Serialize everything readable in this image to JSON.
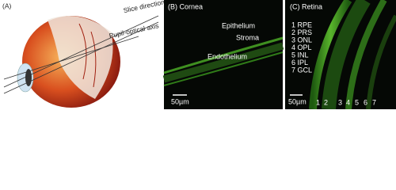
{
  "panels": {
    "a": {
      "label": "(A)",
      "slice": "Slice direction",
      "axis": "Pupil-optical axis"
    },
    "b": {
      "label": "(B) Cornea",
      "layers": [
        "Epithelium",
        "Stroma",
        "Endothelium"
      ],
      "scale": "50µm"
    },
    "c": {
      "label": "(C) Retina",
      "layers": [
        "1 RPE",
        "2 PRS",
        "3 ONL",
        "4 OPL",
        "5 INL",
        "6 IPL",
        "7 GCL"
      ],
      "scale": "50µm",
      "numbers": [
        "1",
        "2",
        "3",
        "4",
        "5",
        "6",
        "7"
      ]
    }
  }
}
